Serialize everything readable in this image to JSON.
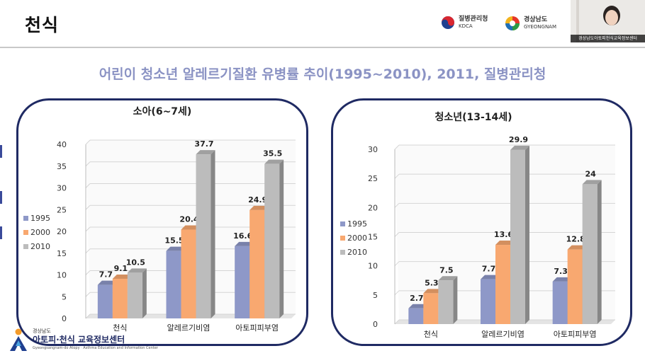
{
  "header": {
    "title": "천식",
    "kdca_logo": {
      "line1": "질병관리청",
      "line2": "KDCA"
    },
    "gyeongnam_logo": {
      "line1": "경상남도",
      "line2": "GYEONGNAM"
    }
  },
  "webcam": {
    "caption": "경상남도아토피천식교육정보센터"
  },
  "slide": {
    "title": "어린이 청소년 알레르기질환 유병률 추이(1995~2010), 2011, 질병관리청"
  },
  "footer": {
    "region": "경상남도",
    "name": "아토피·천식 교육정보센터",
    "english": "Gyeongsangnam-do Atopy · Asthma Education and Information Center"
  },
  "colors": {
    "s1995": "#8e98c8",
    "s2000": "#f8a870",
    "s2010": "#bcbcbc",
    "panel_border": "#1f2a63",
    "title": "#8b93c4"
  },
  "chart_data": [
    {
      "type": "bar",
      "title": "소아(6~7세)",
      "categories": [
        "천식",
        "알레르기비염",
        "아토피피부염"
      ],
      "series": [
        {
          "name": "1995",
          "values": [
            7.7,
            15.5,
            16.6
          ]
        },
        {
          "name": "2000",
          "values": [
            9.1,
            20.4,
            24.9
          ]
        },
        {
          "name": "2010",
          "values": [
            10.5,
            37.7,
            35.5
          ]
        }
      ],
      "ylim": [
        0,
        40
      ],
      "yticks": [
        0,
        5,
        10,
        15,
        20,
        25,
        30,
        35,
        40
      ],
      "legend": "left"
    },
    {
      "type": "bar",
      "title": "청소년(13-14세)",
      "categories": [
        "천식",
        "알레르기비염",
        "아토피피부염"
      ],
      "series": [
        {
          "name": "1995",
          "values": [
            2.7,
            7.7,
            7.3
          ]
        },
        {
          "name": "2000",
          "values": [
            5.3,
            13.6,
            12.8
          ]
        },
        {
          "name": "2010",
          "values": [
            7.5,
            29.9,
            24
          ]
        }
      ],
      "ylim": [
        0,
        30
      ],
      "yticks": [
        0,
        5,
        10,
        15,
        20,
        25,
        30
      ],
      "legend": "left"
    }
  ]
}
